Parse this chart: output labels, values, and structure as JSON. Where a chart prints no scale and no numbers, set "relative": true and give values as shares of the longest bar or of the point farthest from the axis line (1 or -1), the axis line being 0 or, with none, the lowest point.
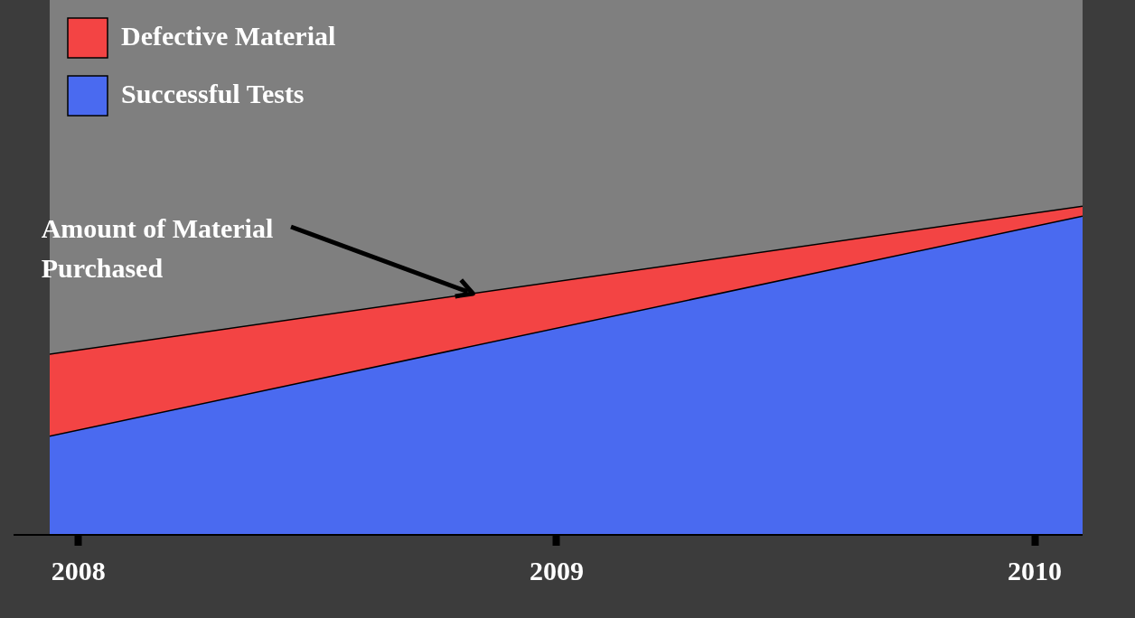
{
  "chart_data": {
    "type": "area",
    "relative": true,
    "stacked": true,
    "legend": "top left",
    "grid": false,
    "line_style": "solid",
    "marker": "none",
    "x": [
      2007.94,
      2010.1
    ],
    "xlim": [
      2007.94,
      2010.1
    ],
    "xticks": [
      2008,
      2009,
      2010
    ],
    "series": [
      {
        "name": "Successful Tests",
        "color": "#4a6af0",
        "values": [
          0.3,
          0.97
        ]
      },
      {
        "name": "Defective Material",
        "color": "#f34444",
        "values": [
          0.25,
          0.03
        ]
      }
    ],
    "annotations": [
      "Amount of Material Purchased"
    ]
  }
}
